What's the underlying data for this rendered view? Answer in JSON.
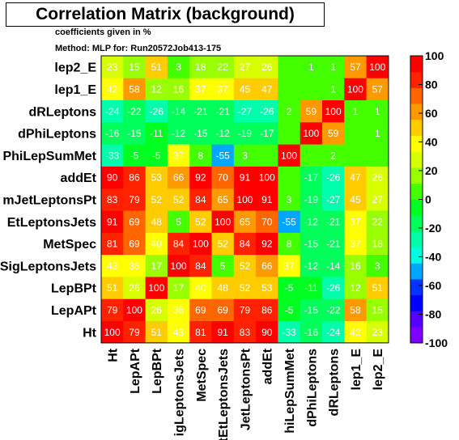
{
  "title": "Correlation Matrix (background)",
  "subtitle": "coefficients given in %",
  "method_line": "Method: MLP for: Run20572Job413-175",
  "chart_data": {
    "type": "heatmap",
    "variables": [
      "Ht",
      "LepAPt",
      "LepBPt",
      "SigLeptonsJets",
      "MetSpec",
      "SumEtLeptonsJets",
      "VSumJetLeptonsPt",
      "addEt",
      "dPhiLepSumMet",
      "dPhiLeptons",
      "dRLeptons",
      "lep1_E",
      "lep2_E"
    ],
    "visible_x_labels": [
      "Ht",
      "LepAPt",
      "LepBPt",
      "igLeptonsJets",
      "MetSpec",
      "tEtLeptonsJets",
      "JetLeptonsPt",
      "addEt",
      "hiLepSumMet",
      "dPhiLeptons",
      "dRLeptons",
      "lep1_E",
      "lep2_E"
    ],
    "visible_y_labels": [
      "Ht",
      "LepAPt",
      "LepBPt",
      "SigLeptonsJets",
      "MetSpec",
      "EtLeptonsJets",
      "mJetLeptonsPt",
      "addEt",
      "PhiLepSumMet",
      "dPhiLeptons",
      "dRLeptons",
      "lep1_E",
      "lep2_E"
    ],
    "matrix": [
      [
        100,
        79,
        51,
        43,
        81,
        91,
        83,
        90,
        -33,
        -16,
        -24,
        42,
        23
      ],
      [
        79,
        100,
        26,
        36,
        69,
        69,
        79,
        86,
        -5,
        -15,
        -22,
        58,
        15
      ],
      [
        51,
        26,
        100,
        17,
        40,
        48,
        52,
        53,
        -5,
        -11,
        -26,
        12,
        51
      ],
      [
        43,
        36,
        17,
        100,
        84,
        5,
        52,
        66,
        37,
        -12,
        -14,
        16,
        3
      ],
      [
        81,
        69,
        40,
        84,
        100,
        52,
        84,
        92,
        8,
        -15,
        -21,
        37,
        18
      ],
      [
        91,
        69,
        48,
        5,
        52,
        100,
        65,
        70,
        -55,
        -12,
        -21,
        37,
        22
      ],
      [
        83,
        79,
        52,
        52,
        84,
        65,
        100,
        91,
        3,
        -19,
        -27,
        45,
        27
      ],
      [
        90,
        86,
        53,
        66,
        92,
        70,
        91,
        100,
        0,
        -17,
        -26,
        47,
        26
      ],
      [
        -33,
        -5,
        -5,
        37,
        8,
        -55,
        3,
        0,
        100,
        0,
        2,
        0,
        0
      ],
      [
        -16,
        -15,
        -11,
        -12,
        -15,
        -12,
        -19,
        -17,
        0,
        100,
        59,
        0,
        1
      ],
      [
        -24,
        -22,
        -26,
        -14,
        -21,
        -21,
        -27,
        -26,
        2,
        59,
        100,
        1,
        1
      ],
      [
        42,
        58,
        12,
        16,
        37,
        37,
        45,
        47,
        0,
        0,
        1,
        100,
        57
      ],
      [
        23,
        15,
        51,
        3,
        18,
        22,
        27,
        26,
        0,
        1,
        1,
        57,
        100
      ]
    ],
    "zlim": [
      -100,
      100
    ],
    "colorbar_ticks": [
      100,
      80,
      60,
      40,
      20,
      0,
      -20,
      -40,
      -60,
      -80,
      -100
    ],
    "colorbar_tick_labels": [
      "100",
      "80",
      "60",
      "40",
      "20",
      "0",
      "-20",
      "-40",
      "-60",
      "-80",
      "-100"
    ],
    "colorbar_colors": [
      "#7f00ff",
      "#5500ff",
      "#0000ff",
      "#0033ff",
      "#00a6ff",
      "#00ffe0",
      "#00ffaa",
      "#00ff5b",
      "#00ff20",
      "#44ff00",
      "#99ff00",
      "#d8ff00",
      "#ffff00",
      "#ffcc00",
      "#ff9900",
      "#ff6600",
      "#ff2200",
      "#ff0000"
    ],
    "grid": false,
    "legend": "colorbar-right"
  }
}
